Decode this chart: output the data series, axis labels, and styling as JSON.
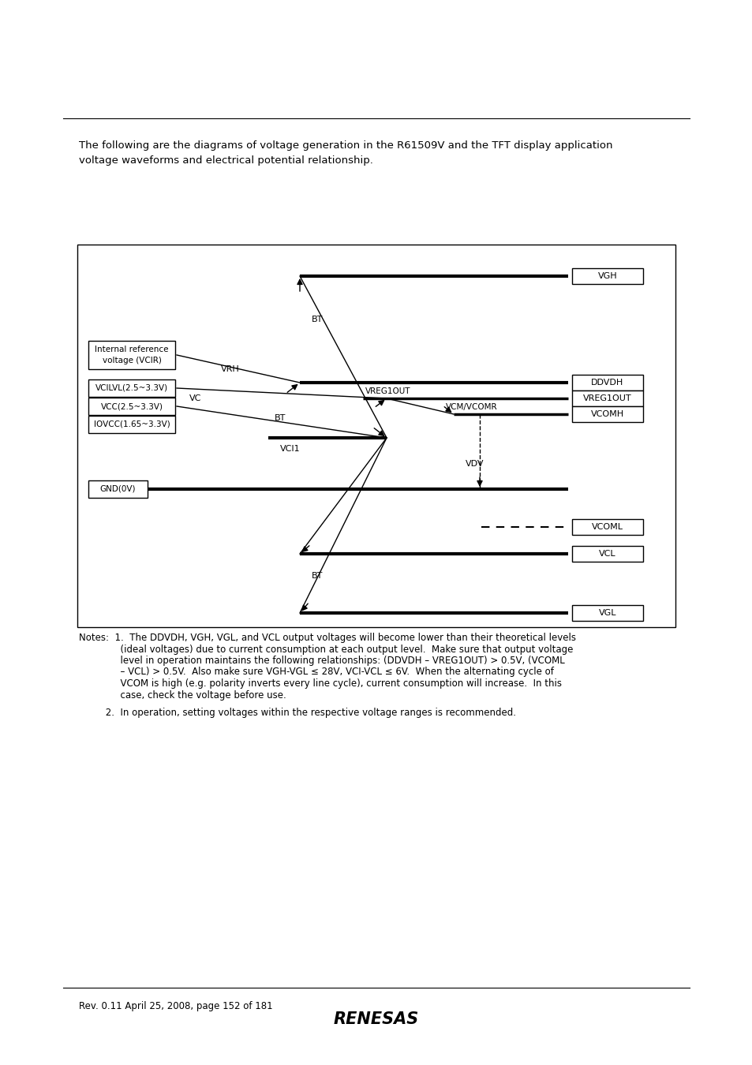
{
  "title_text": "The following are the diagrams of voltage generation in the R61509V and the TFT display application\nvoltage waveforms and electrical potential relationship.",
  "footer_left": "Rev. 0.11 April 25, 2008, page 152 of 181",
  "bg_color": "#ffffff",
  "note1_line1": "Notes:  1.  The DDVDH, VGH, VGL, and VCL output voltages will become lower than their theoretical levels",
  "note1_line2": "              (ideal voltages) due to current consumption at each output level.  Make sure that output voltage",
  "note1_line3": "              level in operation maintains the following relationships: (DDVDH – VREG1OUT) > 0.5V, (VCOML",
  "note1_line4": "              – VCL) > 0.5V.  Also make sure VGH-VGL ≤ 28V, VCI-VCL ≤ 6V.  When the alternating cycle of",
  "note1_line5": "              VCOM is high (e.g. polarity inverts every line cycle), current consumption will increase.  In this",
  "note1_line6": "              case, check the voltage before use.",
  "note2": "         2.  In operation, setting voltages within the respective voltage ranges is recommended."
}
